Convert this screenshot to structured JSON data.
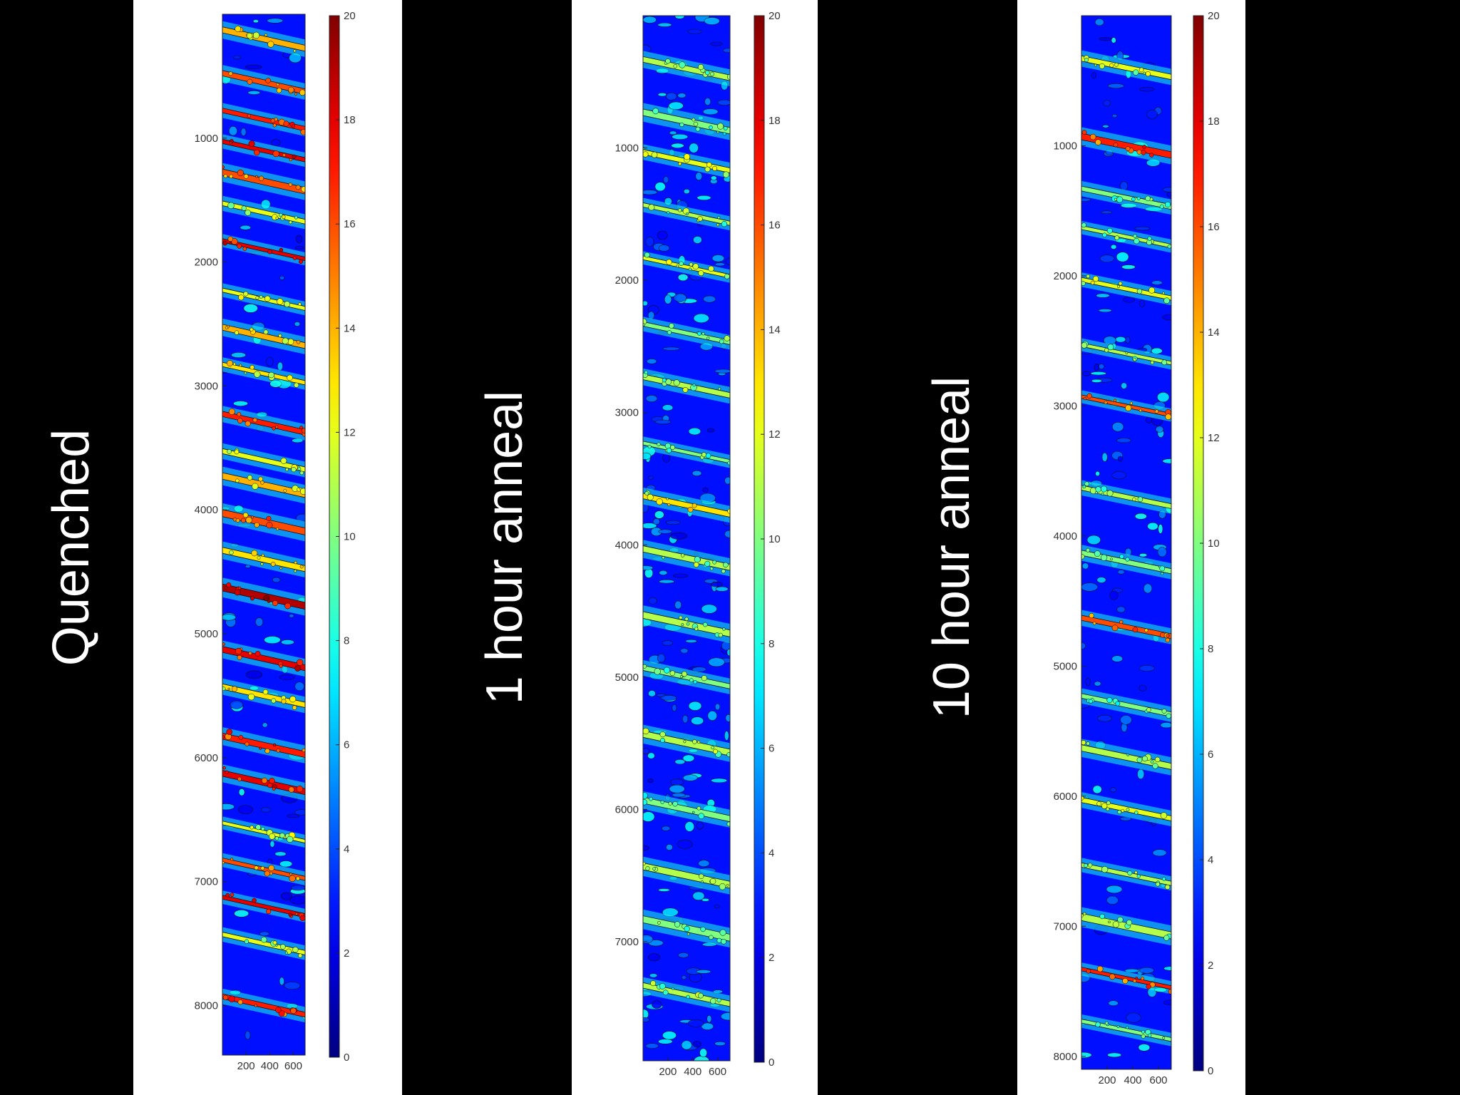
{
  "chart_data": [
    {
      "type": "heatmap",
      "sample_label": "Quenched",
      "y_ticks": [
        "1000",
        "2000",
        "3000",
        "4000",
        "5000",
        "6000",
        "7000",
        "8000"
      ],
      "y_tick_values": [
        1000,
        2000,
        3000,
        4000,
        5000,
        6000,
        7000,
        8000
      ],
      "ylim": [
        0,
        8400
      ],
      "x_ticks": [
        "200",
        "400",
        "600"
      ],
      "x_tick_values": [
        200,
        400,
        600
      ],
      "colorbar_ticks": [
        "0",
        "2",
        "4",
        "6",
        "8",
        "10",
        "12",
        "14",
        "16",
        "18",
        "20"
      ],
      "colorbar_range": [
        0,
        20
      ],
      "bands": [
        {
          "y": 200,
          "level": 14
        },
        {
          "y": 550,
          "level": 16
        },
        {
          "y": 850,
          "level": 17
        },
        {
          "y": 1100,
          "level": 18
        },
        {
          "y": 1350,
          "level": 16
        },
        {
          "y": 1600,
          "level": 12
        },
        {
          "y": 1900,
          "level": 18
        },
        {
          "y": 2300,
          "level": 12
        },
        {
          "y": 2600,
          "level": 14
        },
        {
          "y": 2900,
          "level": 13
        },
        {
          "y": 3300,
          "level": 17
        },
        {
          "y": 3600,
          "level": 12
        },
        {
          "y": 3800,
          "level": 14
        },
        {
          "y": 4100,
          "level": 16
        },
        {
          "y": 4400,
          "level": 13
        },
        {
          "y": 4700,
          "level": 19
        },
        {
          "y": 5200,
          "level": 18
        },
        {
          "y": 5500,
          "level": 13
        },
        {
          "y": 5900,
          "level": 17
        },
        {
          "y": 6200,
          "level": 18
        },
        {
          "y": 6600,
          "level": 12
        },
        {
          "y": 6900,
          "level": 16
        },
        {
          "y": 7200,
          "level": 18
        },
        {
          "y": 7500,
          "level": 12
        },
        {
          "y": 8000,
          "level": 17
        }
      ]
    },
    {
      "type": "heatmap",
      "sample_label": "1 hour anneal",
      "y_ticks": [
        "1000",
        "2000",
        "3000",
        "4000",
        "5000",
        "6000",
        "7000"
      ],
      "y_tick_values": [
        1000,
        2000,
        3000,
        4000,
        5000,
        6000,
        7000
      ],
      "ylim": [
        0,
        7900
      ],
      "x_ticks": [
        "200",
        "400",
        "600"
      ],
      "x_tick_values": [
        200,
        400,
        600
      ],
      "colorbar_ticks": [
        "0",
        "2",
        "4",
        "6",
        "8",
        "10",
        "12",
        "14",
        "16",
        "18",
        "20"
      ],
      "colorbar_range": [
        0,
        20
      ],
      "bands": [
        {
          "y": 400,
          "level": 11
        },
        {
          "y": 800,
          "level": 10
        },
        {
          "y": 1100,
          "level": 12
        },
        {
          "y": 1500,
          "level": 11
        },
        {
          "y": 1900,
          "level": 12
        },
        {
          "y": 2400,
          "level": 10
        },
        {
          "y": 2800,
          "level": 11
        },
        {
          "y": 3300,
          "level": 10
        },
        {
          "y": 3700,
          "level": 13
        },
        {
          "y": 4100,
          "level": 11
        },
        {
          "y": 4600,
          "level": 11
        },
        {
          "y": 5000,
          "level": 10
        },
        {
          "y": 5500,
          "level": 11
        },
        {
          "y": 6000,
          "level": 10
        },
        {
          "y": 6500,
          "level": 11
        },
        {
          "y": 6900,
          "level": 10
        },
        {
          "y": 7400,
          "level": 11
        }
      ]
    },
    {
      "type": "heatmap",
      "sample_label": "10 hour anneal",
      "y_ticks": [
        "1000",
        "2000",
        "3000",
        "4000",
        "5000",
        "6000",
        "7000",
        "8000"
      ],
      "y_tick_values": [
        1000,
        2000,
        3000,
        4000,
        5000,
        6000,
        7000,
        8000
      ],
      "ylim": [
        0,
        8100
      ],
      "x_ticks": [
        "200",
        "400",
        "600"
      ],
      "x_tick_values": [
        200,
        400,
        600
      ],
      "colorbar_ticks": [
        "0",
        "2",
        "4",
        "6",
        "8",
        "10",
        "12",
        "14",
        "16",
        "18",
        "20"
      ],
      "colorbar_range": [
        0,
        20
      ],
      "bands": [
        {
          "y": 400,
          "level": 12
        },
        {
          "y": 1000,
          "level": 17
        },
        {
          "y": 1400,
          "level": 10
        },
        {
          "y": 1700,
          "level": 11
        },
        {
          "y": 2100,
          "level": 12
        },
        {
          "y": 2600,
          "level": 11
        },
        {
          "y": 3000,
          "level": 16
        },
        {
          "y": 3700,
          "level": 11
        },
        {
          "y": 4200,
          "level": 10
        },
        {
          "y": 4700,
          "level": 16
        },
        {
          "y": 5300,
          "level": 10
        },
        {
          "y": 5700,
          "level": 11
        },
        {
          "y": 6100,
          "level": 12
        },
        {
          "y": 6600,
          "level": 11
        },
        {
          "y": 7000,
          "level": 11
        },
        {
          "y": 7400,
          "level": 17
        },
        {
          "y": 7800,
          "level": 10
        }
      ]
    }
  ]
}
